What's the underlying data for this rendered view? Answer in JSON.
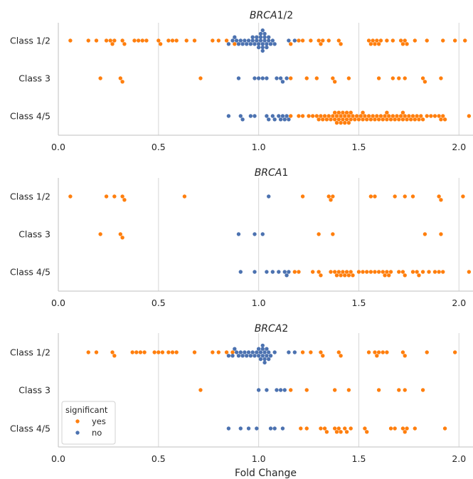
{
  "chart_data": [
    {
      "type": "scatter",
      "title_parts": [
        {
          "text": "BRCA",
          "italic": true
        },
        {
          "text": "1/2",
          "italic": false
        }
      ],
      "categories": [
        "Class 1/2",
        "Class 3",
        "Class 4/5"
      ],
      "xlim": [
        0.0,
        2.07
      ],
      "xticks": [
        "0.0",
        "0.5",
        "1.0",
        "1.5",
        "2.0"
      ],
      "xtick_values": [
        0.0,
        0.5,
        1.0,
        1.5,
        2.0
      ],
      "xlabel": "",
      "grid": "x",
      "series": [
        {
          "name": "yes",
          "color": "#ff7f0e",
          "by_category": {
            "Class 1/2": [
              0.06,
              0.15,
              0.19,
              0.24,
              0.26,
              0.27,
              0.28,
              0.32,
              0.33,
              0.38,
              0.4,
              0.42,
              0.44,
              0.5,
              0.51,
              0.55,
              0.57,
              0.59,
              0.64,
              0.68,
              0.77,
              0.8,
              0.84,
              0.88,
              1.16,
              1.2,
              1.22,
              1.26,
              1.3,
              1.31,
              1.32,
              1.35,
              1.4,
              1.41,
              1.55,
              1.56,
              1.57,
              1.58,
              1.59,
              1.6,
              1.61,
              1.64,
              1.67,
              1.71,
              1.72,
              1.73,
              1.74,
              1.78,
              1.84,
              1.92,
              1.98,
              2.03
            ],
            "Class 3": [
              0.21,
              0.31,
              0.32,
              0.71,
              1.16,
              1.24,
              1.29,
              1.37,
              1.38,
              1.45,
              1.6,
              1.67,
              1.7,
              1.73,
              1.82,
              1.83,
              1.91
            ],
            "Class 4/5": [
              1.16,
              1.2,
              1.22,
              1.25,
              1.27,
              1.29,
              1.3,
              1.31,
              1.32,
              1.33,
              1.34,
              1.35,
              1.36,
              1.37,
              1.38,
              1.38,
              1.39,
              1.39,
              1.4,
              1.4,
              1.41,
              1.41,
              1.42,
              1.42,
              1.43,
              1.43,
              1.44,
              1.44,
              1.45,
              1.45,
              1.46,
              1.46,
              1.47,
              1.48,
              1.49,
              1.5,
              1.51,
              1.52,
              1.52,
              1.53,
              1.54,
              1.55,
              1.56,
              1.57,
              1.58,
              1.59,
              1.6,
              1.61,
              1.62,
              1.63,
              1.64,
              1.64,
              1.65,
              1.66,
              1.67,
              1.68,
              1.69,
              1.7,
              1.71,
              1.72,
              1.72,
              1.73,
              1.74,
              1.75,
              1.76,
              1.77,
              1.78,
              1.79,
              1.8,
              1.81,
              1.82,
              1.84,
              1.86,
              1.88,
              1.9,
              1.91,
              1.92,
              1.93,
              2.05
            ]
          }
        },
        {
          "name": "no",
          "color": "#4c72b0",
          "by_category": {
            "Class 1/2": [
              0.85,
              0.87,
              0.88,
              0.89,
              0.9,
              0.91,
              0.92,
              0.93,
              0.94,
              0.95,
              0.96,
              0.97,
              0.97,
              0.98,
              0.99,
              0.99,
              1.0,
              1.0,
              1.01,
              1.01,
              1.01,
              1.02,
              1.02,
              1.02,
              1.02,
              1.03,
              1.03,
              1.03,
              1.04,
              1.04,
              1.05,
              1.05,
              1.06,
              1.07,
              1.08,
              1.15,
              1.18
            ],
            "Class 3": [
              0.9,
              0.98,
              1.0,
              1.02,
              1.04,
              1.09,
              1.11,
              1.12,
              1.14
            ],
            "Class 4/5": [
              0.85,
              0.91,
              0.92,
              0.96,
              0.98,
              1.04,
              1.05,
              1.07,
              1.08,
              1.1,
              1.11,
              1.12,
              1.13,
              1.14,
              1.15
            ]
          }
        }
      ]
    },
    {
      "type": "scatter",
      "title_parts": [
        {
          "text": "BRCA",
          "italic": true
        },
        {
          "text": "1",
          "italic": false
        }
      ],
      "categories": [
        "Class 1/2",
        "Class 3",
        "Class 4/5"
      ],
      "xlim": [
        0.0,
        2.07
      ],
      "xticks": [
        "0.0",
        "0.5",
        "1.0",
        "1.5",
        "2.0"
      ],
      "xtick_values": [
        0.0,
        0.5,
        1.0,
        1.5,
        2.0
      ],
      "xlabel": "",
      "grid": "x",
      "series": [
        {
          "name": "yes",
          "color": "#ff7f0e",
          "by_category": {
            "Class 1/2": [
              0.06,
              0.24,
              0.28,
              0.32,
              0.33,
              0.63,
              1.22,
              1.35,
              1.36,
              1.37,
              1.56,
              1.58,
              1.68,
              1.73,
              1.77,
              1.9,
              1.91,
              2.02
            ],
            "Class 3": [
              0.21,
              0.31,
              0.32,
              1.3,
              1.37,
              1.83,
              1.91
            ],
            "Class 4/5": [
              1.18,
              1.2,
              1.27,
              1.3,
              1.31,
              1.36,
              1.38,
              1.39,
              1.4,
              1.41,
              1.42,
              1.43,
              1.44,
              1.45,
              1.46,
              1.47,
              1.5,
              1.52,
              1.54,
              1.56,
              1.58,
              1.6,
              1.62,
              1.63,
              1.64,
              1.65,
              1.66,
              1.7,
              1.72,
              1.73,
              1.77,
              1.79,
              1.8,
              1.82,
              1.85,
              1.88,
              1.9,
              1.92,
              2.05
            ]
          }
        },
        {
          "name": "no",
          "color": "#4c72b0",
          "by_category": {
            "Class 1/2": [
              1.05
            ],
            "Class 3": [
              0.9,
              0.98,
              1.02
            ],
            "Class 4/5": [
              0.91,
              0.98,
              1.04,
              1.07,
              1.1,
              1.13,
              1.14,
              1.15
            ]
          }
        }
      ]
    },
    {
      "type": "scatter",
      "title_parts": [
        {
          "text": "BRCA",
          "italic": true
        },
        {
          "text": "2",
          "italic": false
        }
      ],
      "categories": [
        "Class 1/2",
        "Class 3",
        "Class 4/5"
      ],
      "xlim": [
        0.0,
        2.07
      ],
      "xticks": [
        "0.0",
        "0.5",
        "1.0",
        "1.5",
        "2.0"
      ],
      "xtick_values": [
        0.0,
        0.5,
        1.0,
        1.5,
        2.0
      ],
      "xlabel": "Fold Change",
      "grid": "x",
      "series": [
        {
          "name": "yes",
          "color": "#ff7f0e",
          "by_category": {
            "Class 1/2": [
              0.15,
              0.19,
              0.27,
              0.28,
              0.37,
              0.39,
              0.41,
              0.43,
              0.48,
              0.5,
              0.52,
              0.55,
              0.57,
              0.59,
              0.68,
              0.77,
              0.8,
              0.84,
              0.87,
              1.22,
              1.26,
              1.31,
              1.32,
              1.4,
              1.41,
              1.55,
              1.58,
              1.59,
              1.6,
              1.62,
              1.64,
              1.72,
              1.73,
              1.84,
              1.98
            ],
            "Class 3": [
              0.71,
              1.16,
              1.24,
              1.38,
              1.45,
              1.6,
              1.7,
              1.73,
              1.82
            ],
            "Class 4/5": [
              1.21,
              1.24,
              1.31,
              1.33,
              1.34,
              1.38,
              1.39,
              1.4,
              1.41,
              1.43,
              1.44,
              1.46,
              1.53,
              1.54,
              1.66,
              1.68,
              1.72,
              1.73,
              1.74,
              1.78,
              1.93
            ]
          }
        },
        {
          "name": "no",
          "color": "#4c72b0",
          "by_category": {
            "Class 1/2": [
              0.85,
              0.87,
              0.88,
              0.89,
              0.9,
              0.91,
              0.92,
              0.93,
              0.94,
              0.95,
              0.96,
              0.97,
              0.98,
              0.99,
              1.0,
              1.0,
              1.01,
              1.01,
              1.02,
              1.02,
              1.02,
              1.03,
              1.03,
              1.03,
              1.04,
              1.04,
              1.05,
              1.05,
              1.06,
              1.08,
              1.15,
              1.18
            ],
            "Class 3": [
              1.0,
              1.04,
              1.09,
              1.11,
              1.13
            ],
            "Class 4/5": [
              0.85,
              0.91,
              0.95,
              0.99,
              1.06,
              1.08,
              1.12
            ]
          }
        }
      ]
    }
  ],
  "legend": {
    "title": "significant",
    "placement": "lower-left",
    "entries": [
      {
        "label": "yes",
        "color": "#ff7f0e"
      },
      {
        "label": "no",
        "color": "#4c72b0"
      }
    ]
  }
}
